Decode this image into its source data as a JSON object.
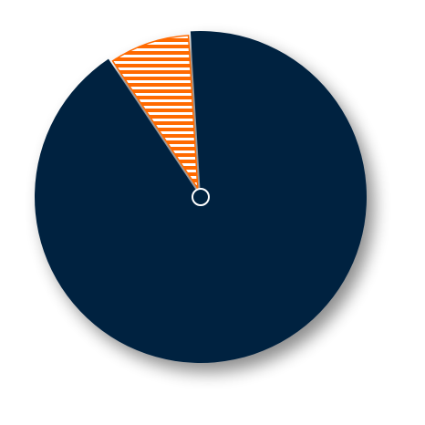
{
  "chart_data": {
    "type": "pie",
    "title": "",
    "slices": [
      {
        "value": 91.6,
        "color": "#002340",
        "pattern": "solid",
        "exploded": false
      },
      {
        "value": 8.4,
        "color": "#ff6a00",
        "pattern": "horizontal-stripes",
        "exploded": true
      }
    ],
    "center_marker": "ring",
    "shadow": true
  }
}
